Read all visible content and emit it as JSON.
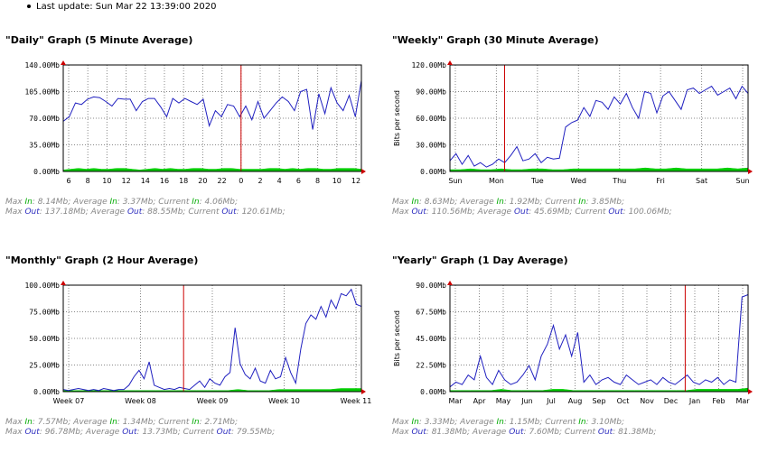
{
  "last_update": "Last update: Sun Mar 22 13:39:00 2020",
  "axis_unit_label": "Bits per second",
  "colors": {
    "in": "#00cc00",
    "out": "#2020c0",
    "marker": "#cc0000",
    "grid": "#888888"
  },
  "chart_data": [
    {
      "id": "daily",
      "type": "area",
      "title": "\"Daily\" Graph (5 Minute Average)",
      "ylabel": "",
      "ylim": [
        0,
        140
      ],
      "y_ticks": [
        "0.00Mb",
        "35.00Mb",
        "70.00Mb",
        "105.00Mb",
        "140.00Mb"
      ],
      "x_ticks": [
        "6",
        "8",
        "10",
        "12",
        "14",
        "16",
        "18",
        "20",
        "22",
        "0",
        "2",
        "4",
        "6",
        "8",
        "10",
        "12"
      ],
      "marker_x": 9,
      "series": [
        {
          "name": "In",
          "values": [
            2,
            3,
            4,
            3,
            4,
            3,
            3,
            4,
            4,
            3,
            2,
            3,
            4,
            3,
            4,
            3,
            3,
            4,
            4,
            3,
            3,
            4,
            4,
            3,
            3,
            3,
            3,
            4,
            4,
            3,
            4,
            3,
            4,
            4,
            3,
            3,
            4,
            4,
            4,
            3
          ]
        },
        {
          "name": "Out",
          "values": [
            66,
            72,
            90,
            88,
            95,
            98,
            97,
            92,
            86,
            96,
            95,
            95,
            80,
            92,
            96,
            96,
            85,
            72,
            96,
            90,
            96,
            92,
            88,
            95,
            60,
            80,
            72,
            88,
            86,
            72,
            86,
            68,
            92,
            70,
            80,
            90,
            98,
            92,
            80,
            105,
            108,
            55,
            102,
            76,
            110,
            90,
            80,
            100,
            72,
            120
          ]
        }
      ],
      "stats": {
        "in": {
          "max": "8.14Mb",
          "average": "3.37Mb",
          "current": "4.06Mb"
        },
        "out": {
          "max": "137.18Mb",
          "average": "88.55Mb",
          "current": "120.61Mb"
        }
      }
    },
    {
      "id": "weekly",
      "type": "area",
      "title": "\"Weekly\" Graph (30 Minute Average)",
      "ylabel": "Bits per second",
      "ylim": [
        0,
        120
      ],
      "y_ticks": [
        "0.00Mb",
        "30.00Mb",
        "60.00Mb",
        "90.00Mb",
        "120.00Mb"
      ],
      "x_ticks": [
        "Sun",
        "Mon",
        "Tue",
        "Wed",
        "Thu",
        "Fri",
        "Sat",
        "Sun"
      ],
      "marker_x": 1.2,
      "series": [
        {
          "name": "In",
          "values": [
            2,
            2,
            3,
            2,
            2,
            3,
            2,
            2,
            3,
            3,
            2,
            2,
            3,
            3,
            3,
            3,
            3,
            3,
            3,
            4,
            3,
            3,
            4,
            3,
            3,
            3,
            3,
            4,
            3,
            4
          ]
        },
        {
          "name": "Out",
          "values": [
            12,
            20,
            8,
            18,
            6,
            10,
            5,
            8,
            14,
            10,
            18,
            28,
            12,
            14,
            20,
            10,
            16,
            14,
            15,
            50,
            55,
            58,
            72,
            62,
            80,
            78,
            70,
            84,
            76,
            88,
            72,
            60,
            90,
            88,
            66,
            85,
            90,
            80,
            70,
            92,
            94,
            88,
            92,
            96,
            86,
            90,
            94,
            82,
            96,
            88
          ]
        }
      ],
      "stats": {
        "in": {
          "max": "8.63Mb",
          "average": "1.92Mb",
          "current": "3.85Mb"
        },
        "out": {
          "max": "110.56Mb",
          "average": "45.69Mb",
          "current": "100.06Mb"
        }
      }
    },
    {
      "id": "monthly",
      "type": "area",
      "title": "\"Monthly\" Graph (2 Hour Average)",
      "ylabel": "",
      "ylim": [
        0,
        100
      ],
      "y_ticks": [
        "0.00Mb",
        "25.00Mb",
        "50.00Mb",
        "75.00Mb",
        "100.00Mb"
      ],
      "x_ticks": [
        "Week 07",
        "Week 08",
        "Week 09",
        "Week 10",
        "Week 11"
      ],
      "marker_x": 1.6,
      "series": [
        {
          "name": "In",
          "values": [
            1,
            1,
            1,
            1,
            1,
            1,
            1,
            1,
            1,
            1,
            1,
            1,
            1,
            1,
            1,
            1,
            1,
            2,
            1,
            1,
            1,
            2,
            2,
            2,
            2,
            2,
            2,
            3,
            3,
            3
          ]
        },
        {
          "name": "Out",
          "values": [
            2,
            1,
            2,
            3,
            2,
            1,
            2,
            1,
            3,
            2,
            1,
            2,
            2,
            6,
            14,
            20,
            12,
            28,
            6,
            4,
            2,
            3,
            2,
            4,
            3,
            2,
            6,
            10,
            4,
            12,
            8,
            6,
            14,
            18,
            60,
            26,
            16,
            12,
            22,
            10,
            8,
            20,
            12,
            14,
            32,
            18,
            8,
            40,
            64,
            72,
            68,
            80,
            70,
            86,
            78,
            92,
            90,
            96,
            82,
            80
          ]
        }
      ],
      "stats": {
        "in": {
          "max": "7.57Mb",
          "average": "1.34Mb",
          "current": "2.71Mb"
        },
        "out": {
          "max": "96.78Mb",
          "average": "13.73Mb",
          "current": "79.55Mb"
        }
      }
    },
    {
      "id": "yearly",
      "type": "area",
      "title": "\"Yearly\" Graph (1 Day Average)",
      "ylabel": "Bits per second",
      "ylim": [
        0,
        90
      ],
      "y_ticks": [
        "0.00Mb",
        "22.50Mb",
        "45.00Mb",
        "67.50Mb",
        "90.00Mb"
      ],
      "x_ticks": [
        "Mar",
        "Apr",
        "May",
        "Jun",
        "Jul",
        "Aug",
        "Sep",
        "Oct",
        "Nov",
        "Dec",
        "Jan",
        "Feb",
        "Mar"
      ],
      "marker_x": 9.6,
      "series": [
        {
          "name": "In",
          "values": [
            1,
            1,
            1,
            1,
            1,
            2,
            1,
            1,
            1,
            1,
            2,
            2,
            1,
            1,
            1,
            1,
            1,
            1,
            1,
            1,
            1,
            1,
            1,
            1,
            2,
            2,
            2,
            2,
            2,
            3
          ]
        },
        {
          "name": "Out",
          "values": [
            4,
            8,
            6,
            14,
            10,
            30,
            12,
            6,
            18,
            10,
            6,
            8,
            14,
            22,
            10,
            30,
            40,
            56,
            36,
            48,
            30,
            50,
            8,
            14,
            6,
            10,
            12,
            8,
            6,
            14,
            10,
            6,
            8,
            10,
            6,
            12,
            8,
            6,
            10,
            14,
            8,
            6,
            10,
            8,
            12,
            6,
            10,
            8,
            80,
            82
          ]
        }
      ],
      "stats": {
        "in": {
          "max": "3.33Mb",
          "average": "1.15Mb",
          "current": "3.10Mb"
        },
        "out": {
          "max": "81.38Mb",
          "average": "7.60Mb",
          "current": "81.38Mb"
        }
      }
    }
  ]
}
